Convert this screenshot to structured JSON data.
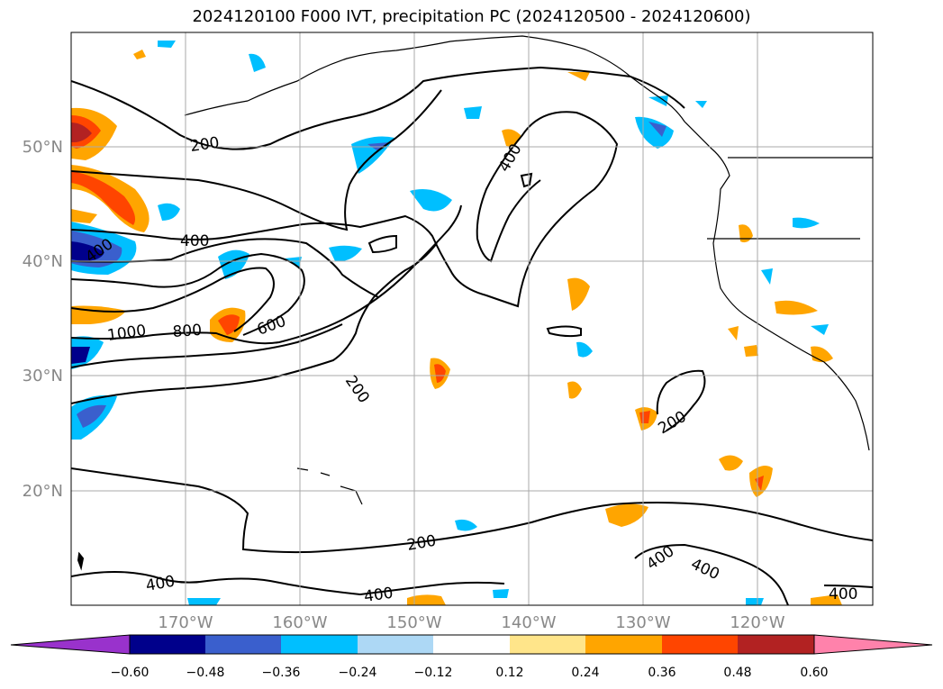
{
  "title": "2024120100 F000 IVT, precipitation PC (2024120500 - 2024120600)",
  "lon_ticks": [
    "170°W",
    "160°W",
    "150°W",
    "140°W",
    "130°W",
    "120°W"
  ],
  "lat_ticks": [
    "50°N",
    "40°N",
    "30°N",
    "20°N"
  ],
  "contour_labels": [
    "200",
    "400",
    "400",
    "400",
    "1000",
    "800",
    "600",
    "200",
    "200",
    "200",
    "400",
    "400",
    "400",
    "400",
    "400"
  ],
  "colorbar": {
    "ticks": [
      "−0.60",
      "−0.48",
      "−0.36",
      "−0.24",
      "−0.12",
      "0.12",
      "0.24",
      "0.36",
      "0.48",
      "0.60"
    ],
    "colors": [
      "#9932cc",
      "#00008b",
      "#3a5fcd",
      "#00bfff",
      "#add8f5",
      "#ffffff",
      "#ffe58a",
      "#ffa500",
      "#ff4500",
      "#b22222",
      "#ff82ab"
    ]
  },
  "colors": {
    "tick_label": "#888888",
    "contour": "#000000",
    "grid": "#aaaaaa"
  }
}
